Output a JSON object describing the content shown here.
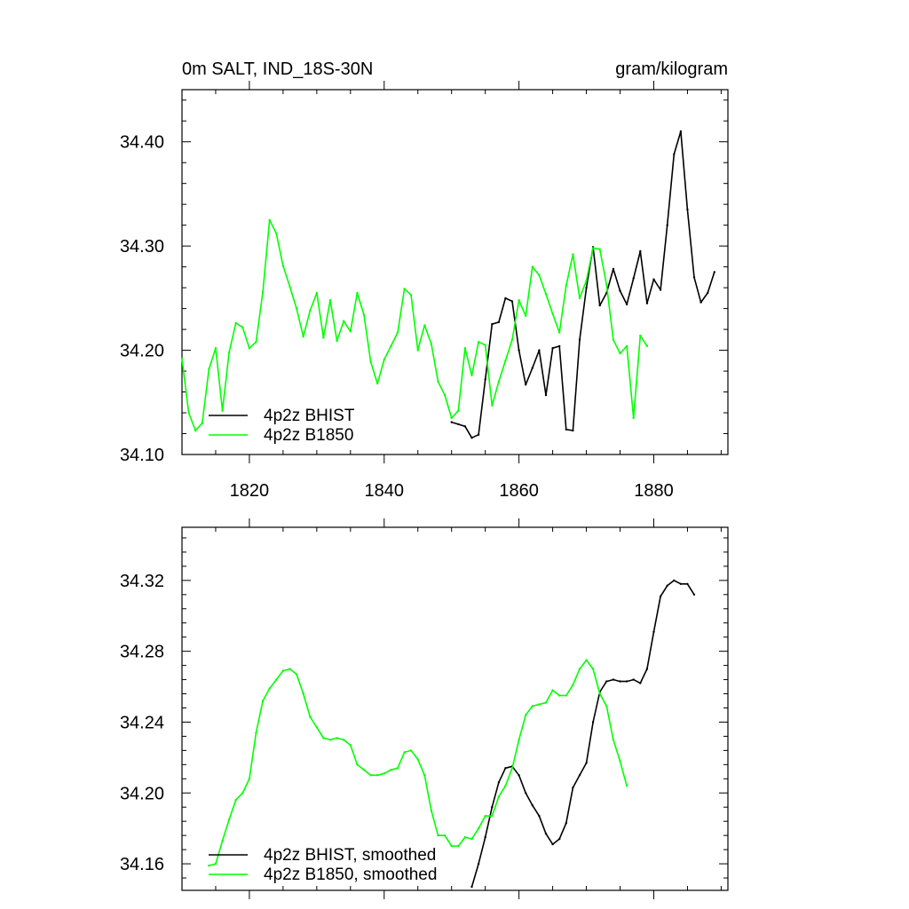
{
  "colors": {
    "bhist": "#000000",
    "b1850": "#00ff00"
  },
  "chart_data": [
    {
      "type": "line",
      "title": "0m SALT, IND_18S-30N",
      "units": "gram/kilogram",
      "xlim": [
        1810,
        1891
      ],
      "ylim": [
        34.1,
        34.45
      ],
      "xticks": [
        1820,
        1840,
        1860,
        1880
      ],
      "xtick_labels": [
        "1820",
        "1840",
        "1860",
        "1880"
      ],
      "yticks": [
        34.1,
        34.2,
        34.3,
        34.4
      ],
      "ytick_labels": [
        "34.10",
        "34.20",
        "34.30",
        "34.40"
      ],
      "legend_position": "bottom-left",
      "series": [
        {
          "name": "4p2z BHIST",
          "color": "#000000",
          "x": [
            1850,
            1851,
            1852,
            1853,
            1854,
            1855,
            1856,
            1857,
            1858,
            1859,
            1860,
            1861,
            1862,
            1863,
            1864,
            1865,
            1866,
            1867,
            1868,
            1869,
            1870,
            1871,
            1872,
            1873,
            1874,
            1875,
            1876,
            1877,
            1878,
            1879,
            1880,
            1881,
            1882,
            1883,
            1884,
            1885,
            1886,
            1887,
            1888,
            1889
          ],
          "y": [
            34.131,
            34.129,
            34.127,
            34.116,
            34.119,
            34.172,
            34.225,
            34.227,
            34.25,
            34.247,
            34.2,
            34.167,
            34.183,
            34.2,
            34.157,
            34.202,
            34.204,
            34.124,
            34.123,
            34.21,
            34.26,
            34.299,
            34.243,
            34.255,
            34.278,
            34.257,
            34.244,
            34.269,
            34.295,
            34.245,
            34.268,
            34.258,
            34.32,
            34.388,
            34.41,
            34.335,
            34.27,
            34.246,
            34.255,
            34.275
          ]
        },
        {
          "name": "4p2z B1850",
          "color": "#00ff00",
          "x": [
            1810,
            1811,
            1812,
            1813,
            1814,
            1815,
            1816,
            1817,
            1818,
            1819,
            1820,
            1821,
            1822,
            1823,
            1824,
            1825,
            1826,
            1827,
            1828,
            1829,
            1830,
            1831,
            1832,
            1833,
            1834,
            1835,
            1836,
            1837,
            1838,
            1839,
            1840,
            1841,
            1842,
            1843,
            1844,
            1845,
            1846,
            1847,
            1848,
            1849,
            1850,
            1851,
            1852,
            1853,
            1854,
            1855,
            1856,
            1857,
            1858,
            1859,
            1860,
            1861,
            1862,
            1863,
            1864,
            1865,
            1866,
            1867,
            1868,
            1869,
            1870,
            1871,
            1872,
            1873,
            1874,
            1875,
            1876,
            1877,
            1878,
            1879
          ],
          "y": [
            34.192,
            34.14,
            34.123,
            34.13,
            34.182,
            34.202,
            34.142,
            34.198,
            34.226,
            34.222,
            34.202,
            34.208,
            34.256,
            34.325,
            34.312,
            34.281,
            34.261,
            34.24,
            34.213,
            34.238,
            34.255,
            34.212,
            34.248,
            34.209,
            34.228,
            34.218,
            34.255,
            34.234,
            34.189,
            34.168,
            34.191,
            34.204,
            34.217,
            34.259,
            34.253,
            34.2,
            34.224,
            34.206,
            34.17,
            34.157,
            34.135,
            34.142,
            34.202,
            34.176,
            34.208,
            34.205,
            34.147,
            34.17,
            34.19,
            34.21,
            34.248,
            34.233,
            34.28,
            34.272,
            34.254,
            34.235,
            34.217,
            34.262,
            34.292,
            34.25,
            34.267,
            34.298,
            34.297,
            34.263,
            34.21,
            34.197,
            34.204,
            34.135,
            34.214,
            34.204
          ]
        }
      ]
    },
    {
      "type": "line",
      "title": "",
      "xlim": [
        1810,
        1891
      ],
      "ylim": [
        34.145,
        34.35
      ],
      "xticks": [
        1820,
        1840,
        1860,
        1880
      ],
      "yticks": [
        34.16,
        34.2,
        34.24,
        34.28,
        34.32
      ],
      "ytick_labels": [
        "34.16",
        "34.20",
        "34.24",
        "34.28",
        "34.32"
      ],
      "legend_position": "bottom-left",
      "series": [
        {
          "name": "4p2z BHIST, smoothed",
          "color": "#000000",
          "x": [
            1853,
            1854,
            1855,
            1856,
            1857,
            1858,
            1859,
            1860,
            1861,
            1862,
            1863,
            1864,
            1865,
            1866,
            1867,
            1868,
            1869,
            1870,
            1871,
            1872,
            1873,
            1874,
            1875,
            1876,
            1877,
            1878,
            1879,
            1880,
            1881,
            1882,
            1883,
            1884,
            1885,
            1886
          ],
          "y": [
            34.147,
            34.16,
            34.175,
            34.192,
            34.206,
            34.214,
            34.215,
            34.21,
            34.2,
            34.193,
            34.187,
            34.177,
            34.171,
            34.174,
            34.183,
            34.203,
            34.21,
            34.217,
            34.24,
            34.257,
            34.263,
            34.264,
            34.263,
            34.263,
            34.264,
            34.262,
            34.27,
            34.291,
            34.311,
            34.317,
            34.32,
            34.318,
            34.318,
            34.312
          ]
        },
        {
          "name": "4p2z B1850, smoothed",
          "color": "#00ff00",
          "x": [
            1814,
            1815,
            1816,
            1817,
            1818,
            1819,
            1820,
            1821,
            1822,
            1823,
            1824,
            1825,
            1826,
            1827,
            1828,
            1829,
            1830,
            1831,
            1832,
            1833,
            1834,
            1835,
            1836,
            1837,
            1838,
            1839,
            1840,
            1841,
            1842,
            1843,
            1844,
            1845,
            1846,
            1847,
            1848,
            1849,
            1850,
            1851,
            1852,
            1853,
            1854,
            1855,
            1856,
            1857,
            1858,
            1859,
            1860,
            1861,
            1862,
            1863,
            1864,
            1865,
            1866,
            1867,
            1868,
            1869,
            1870,
            1871,
            1872,
            1873,
            1874,
            1875,
            1876
          ],
          "y": [
            34.159,
            34.16,
            34.173,
            34.185,
            34.196,
            34.2,
            34.208,
            34.234,
            34.252,
            34.259,
            34.264,
            34.269,
            34.27,
            34.267,
            34.256,
            34.243,
            34.237,
            34.231,
            34.23,
            34.231,
            34.23,
            34.227,
            34.216,
            34.213,
            34.21,
            34.21,
            34.211,
            34.213,
            34.214,
            34.223,
            34.224,
            34.219,
            34.21,
            34.19,
            34.176,
            34.176,
            34.17,
            34.17,
            34.175,
            34.174,
            34.18,
            34.187,
            34.187,
            34.198,
            34.204,
            34.214,
            34.23,
            34.244,
            34.249,
            34.25,
            34.251,
            34.258,
            34.255,
            34.255,
            34.261,
            34.27,
            34.275,
            34.27,
            34.256,
            34.249,
            34.23,
            34.218,
            34.204
          ]
        }
      ]
    }
  ]
}
